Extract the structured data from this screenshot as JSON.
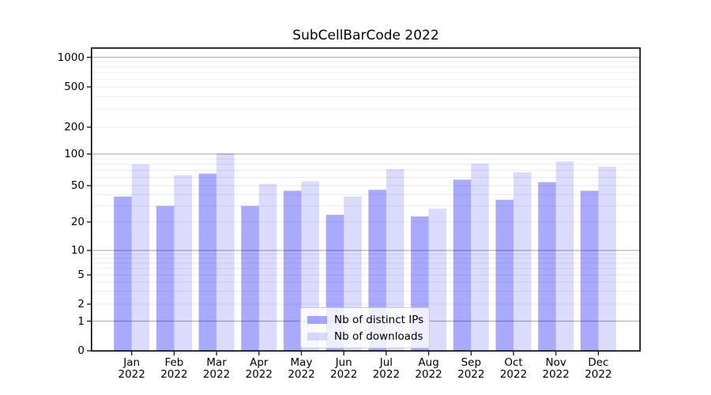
{
  "chart_data": {
    "type": "bar",
    "title": "SubCellBarCode 2022",
    "categories": [
      "Jan",
      "Feb",
      "Mar",
      "Apr",
      "May",
      "Jun",
      "Jul",
      "Aug",
      "Sep",
      "Oct",
      "Nov",
      "Dec"
    ],
    "x_year_label": "2022",
    "series": [
      {
        "name": "Nb of distinct IPs",
        "color": "#0a0afa",
        "alpha": 0.35,
        "values": [
          38,
          30,
          65,
          30,
          44,
          24,
          45,
          23,
          57,
          35,
          54,
          44
        ]
      },
      {
        "name": "Nb of downloads",
        "color": "#0f0ffa",
        "alpha": 0.15,
        "values": [
          80,
          63,
          102,
          52,
          55,
          38,
          72,
          28,
          81,
          67,
          85,
          76
        ]
      }
    ],
    "y_ticks": [
      0,
      1,
      2,
      5,
      10,
      20,
      50,
      100,
      200,
      500,
      1000
    ],
    "ylim": [
      0,
      1000
    ],
    "yscale": "symlog",
    "grid": true,
    "legend_position": "lower center",
    "colors": {
      "major_grid": "#b3b3b3",
      "minor_grid": "#ebebeb",
      "spine": "#000000"
    }
  }
}
